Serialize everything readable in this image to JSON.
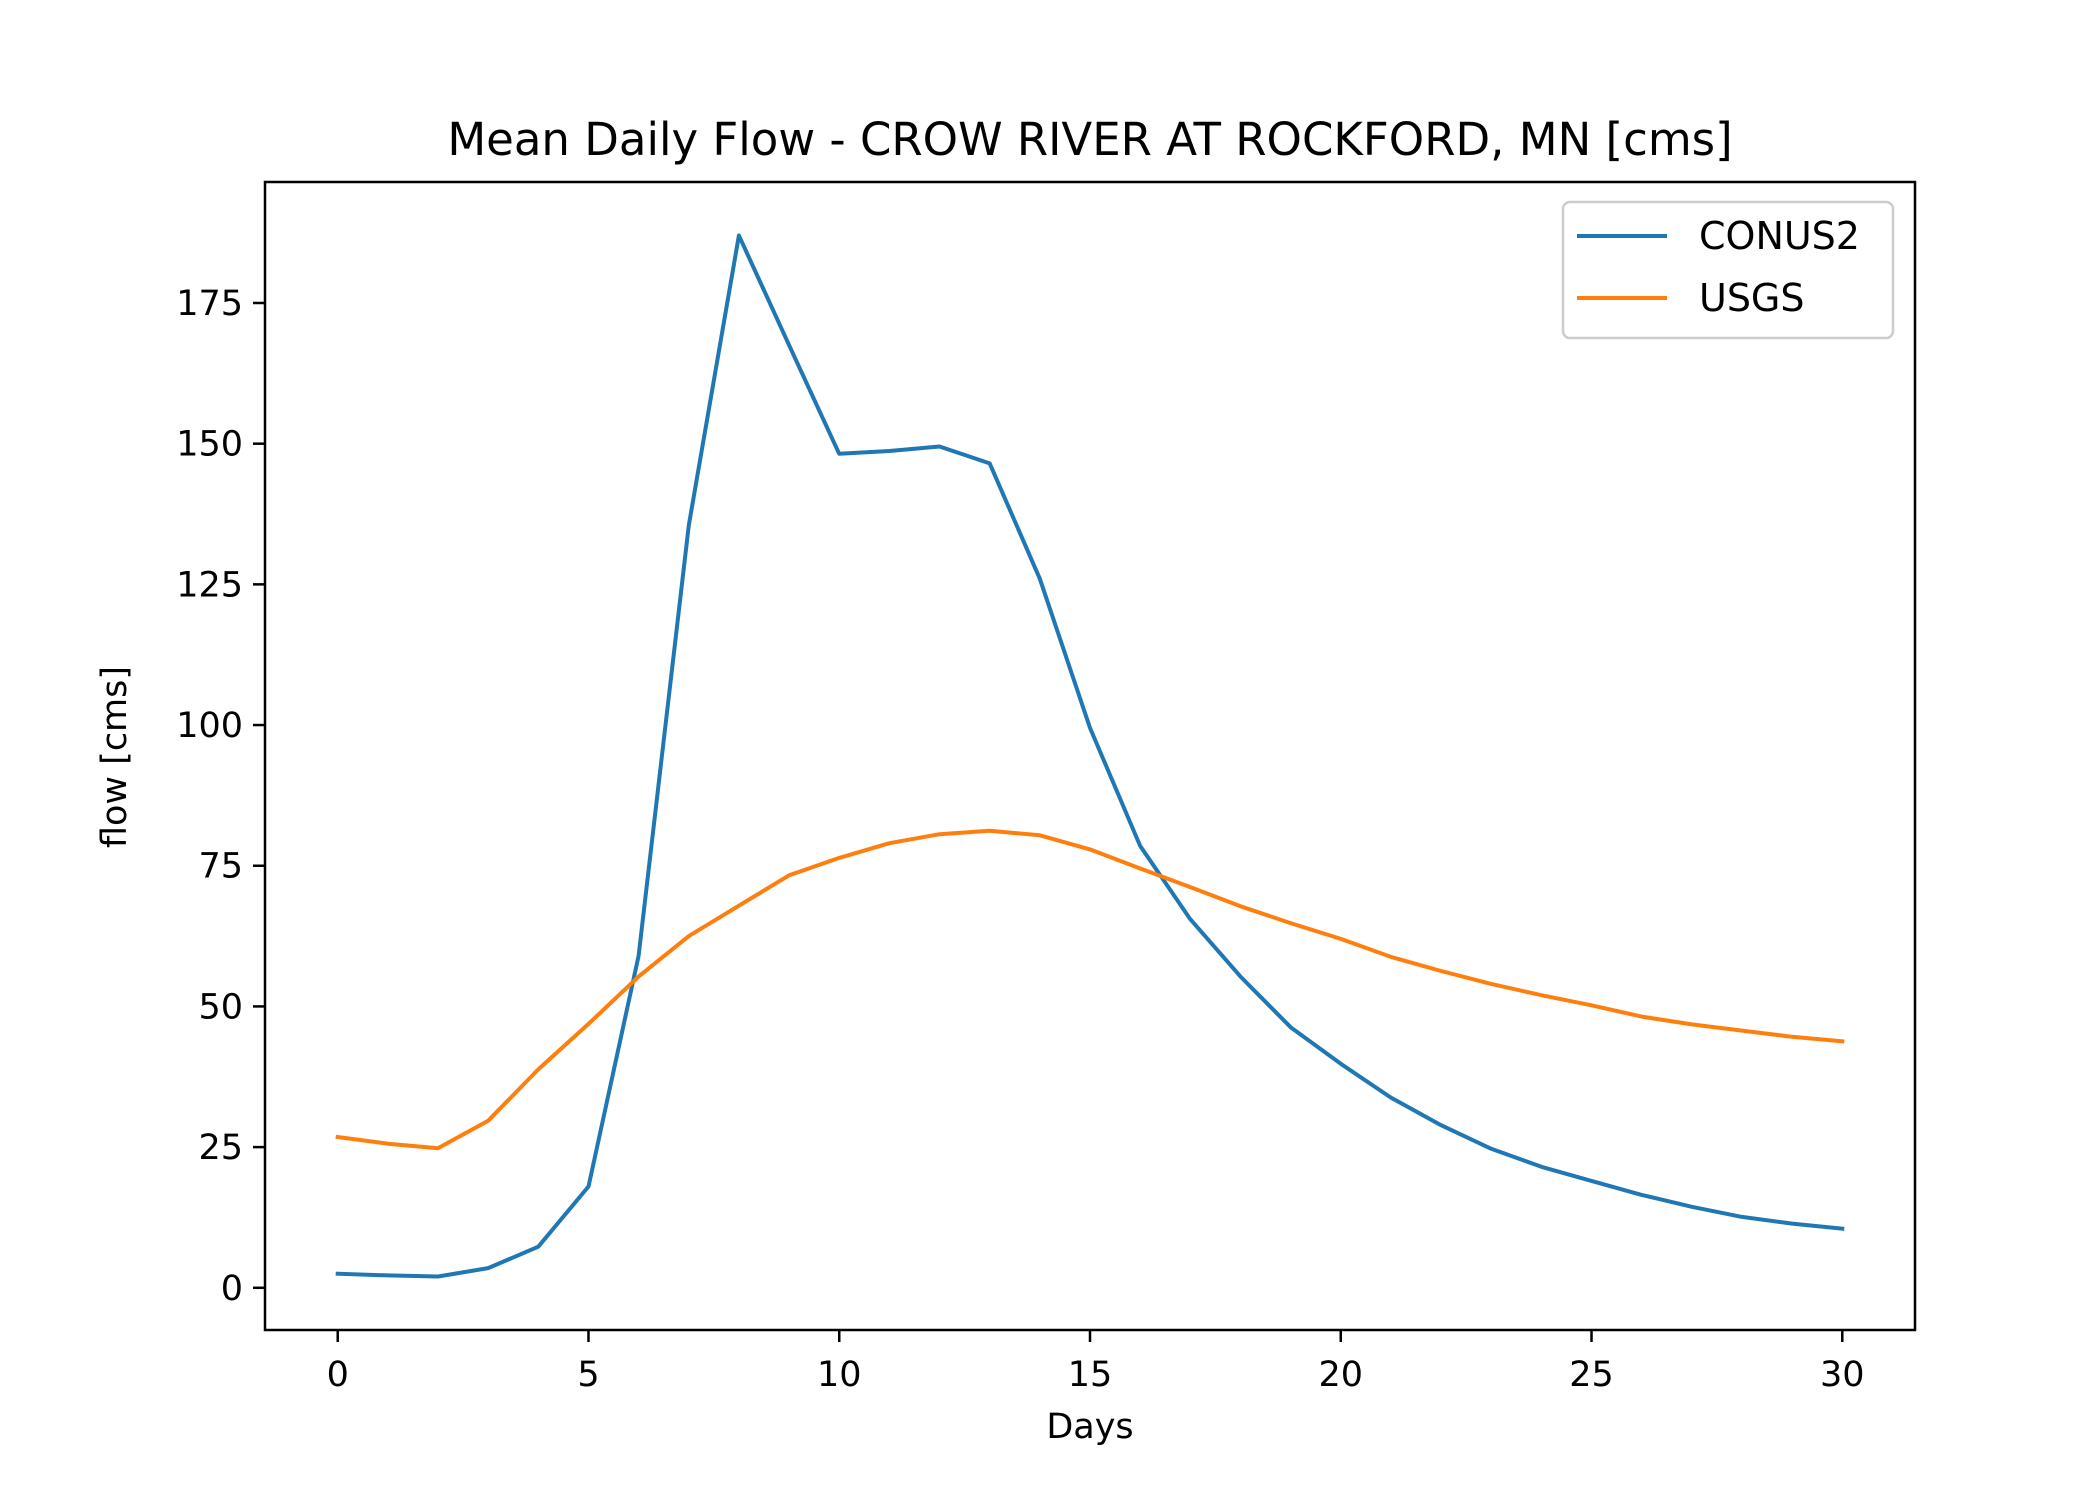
{
  "chart_data": {
    "type": "line",
    "title": "Mean Daily Flow - CROW RIVER AT ROCKFORD, MN [cms]",
    "xlabel": "Days",
    "ylabel": "flow [cms]",
    "xlim": [
      -1.45,
      31.45
    ],
    "ylim": [
      -7.5,
      196.5
    ],
    "xticks": [
      0,
      5,
      10,
      15,
      20,
      25,
      30
    ],
    "yticks": [
      0,
      25,
      50,
      75,
      100,
      125,
      150,
      175
    ],
    "grid": false,
    "legend": "top-right",
    "x": [
      0,
      1,
      2,
      3,
      4,
      5,
      6,
      7,
      8,
      9,
      10,
      11,
      12,
      13,
      14,
      15,
      16,
      17,
      18,
      19,
      20,
      21,
      22,
      23,
      24,
      25,
      26,
      27,
      28,
      29,
      30
    ],
    "series": [
      {
        "name": "CONUS2",
        "color": "#1f77b4",
        "values": [
          2.5,
          2.2,
          2.0,
          3.5,
          7.3,
          18.0,
          59.0,
          135.5,
          187.0,
          167.5,
          148.2,
          148.7,
          149.5,
          146.5,
          126.0,
          99.5,
          78.5,
          65.5,
          55.3,
          46.3,
          39.8,
          33.8,
          28.9,
          24.7,
          21.5,
          19.0,
          16.5,
          14.4,
          12.6,
          11.4,
          10.5
        ]
      },
      {
        "name": "USGS",
        "color": "#ff7f0e",
        "values": [
          26.8,
          25.6,
          24.8,
          29.7,
          38.8,
          46.9,
          55.3,
          62.5,
          67.9,
          73.3,
          76.4,
          79.0,
          80.6,
          81.2,
          80.4,
          77.9,
          74.5,
          71.2,
          67.8,
          64.8,
          62.0,
          58.8,
          56.3,
          54.0,
          52.0,
          50.2,
          48.2,
          46.8,
          45.7,
          44.6,
          43.8
        ]
      }
    ]
  }
}
